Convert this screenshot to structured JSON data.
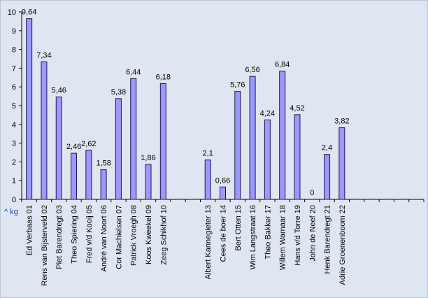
{
  "chart_data": {
    "type": "bar",
    "unit_label": "^ kg",
    "ylim": [
      0,
      10
    ],
    "yticks": [
      0,
      1,
      2,
      3,
      4,
      5,
      6,
      7,
      8,
      9,
      10
    ],
    "grid": false,
    "legend": "none",
    "colors": {
      "bar": "#9999ff",
      "bar_stroke": "#1a1a4d",
      "background": "#dfe6f2"
    },
    "categories": [
      "Ed Verbaas 01",
      "Rens van Bijsterveld 02",
      "Piet Barendregt 03",
      "Theo Spiering 04",
      "Fred v/d Kooij 05",
      "André van Noort 06",
      "Cor Machielsen 07",
      "Patrick Vroegh 08",
      "Koos Kweekel 09",
      "Zeeg Schikhof 10",
      "",
      "",
      "Albert Kannegieter 13",
      "Cees de boer 14",
      "Bert Otten 15",
      "Wim Langstraat 16",
      "Theo Bakker 17",
      "Willem Warnaar 18",
      "Hans v/d Torre 19",
      "John de Neef 20",
      "Henk Barendregt 21",
      "Adrie Groenenboom 22",
      "",
      "",
      "",
      "",
      ""
    ],
    "values": [
      9.64,
      7.34,
      5.46,
      2.46,
      2.62,
      1.58,
      5.38,
      6.44,
      1.86,
      6.18,
      null,
      null,
      2.1,
      0.66,
      5.76,
      6.56,
      4.24,
      6.84,
      4.52,
      0,
      2.4,
      3.82,
      null,
      null,
      null,
      null,
      null
    ],
    "data_labels": [
      "9,64",
      "7,34",
      "5,46",
      "2,46",
      "2,62",
      "1,58",
      "5,38",
      "6,44",
      "1,86",
      "6,18",
      "",
      "",
      "2,1",
      "0,66",
      "5,76",
      "6,56",
      "4,24",
      "6,84",
      "4,52",
      "0",
      "2,4",
      "3,82",
      "",
      "",
      "",
      "",
      ""
    ]
  }
}
